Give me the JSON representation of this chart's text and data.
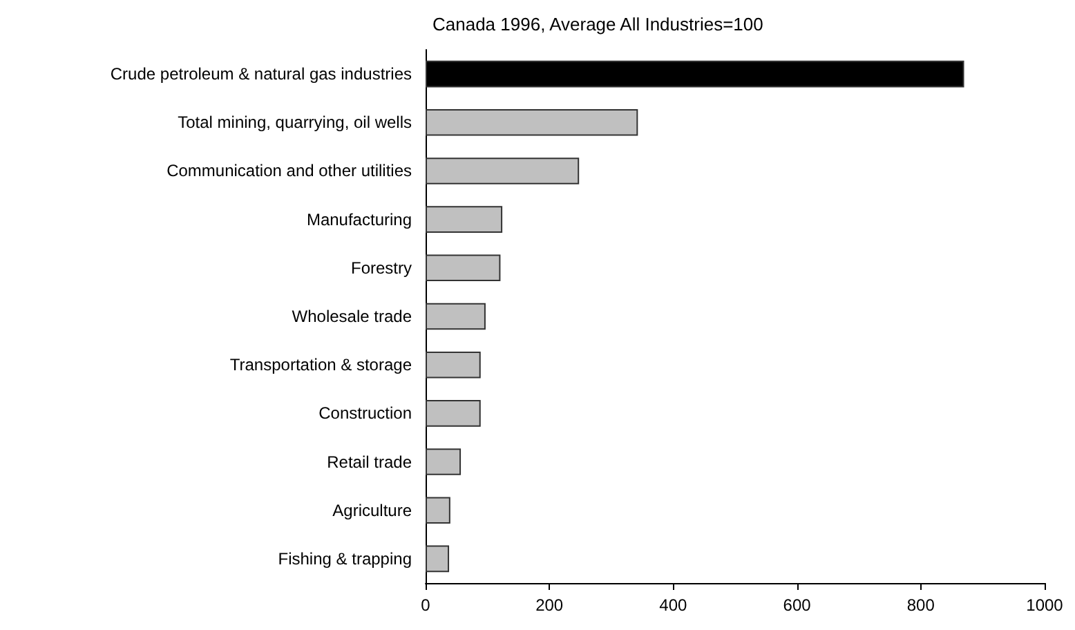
{
  "chart_data": {
    "type": "bar",
    "orientation": "horizontal",
    "title": "Canada 1996, Average All Industries=100",
    "categories": [
      "Crude petroleum & natural gas industries",
      "Total mining, quarrying, oil wells",
      "Communication and other utilities",
      "Manufacturing",
      "Forestry",
      "Wholesale trade",
      "Transportation & storage",
      "Construction",
      "Retail trade",
      "Agriculture",
      "Fishing & trapping"
    ],
    "values": [
      870,
      343,
      248,
      124,
      121,
      97,
      89,
      89,
      57,
      40,
      38
    ],
    "colors": [
      "#000000",
      "#c0c0c0",
      "#c0c0c0",
      "#c0c0c0",
      "#c0c0c0",
      "#c0c0c0",
      "#c0c0c0",
      "#c0c0c0",
      "#c0c0c0",
      "#c0c0c0",
      "#c0c0c0"
    ],
    "xlim": [
      0,
      1000
    ],
    "xticks": [
      0,
      200,
      400,
      600,
      800,
      1000
    ],
    "grid": false
  }
}
